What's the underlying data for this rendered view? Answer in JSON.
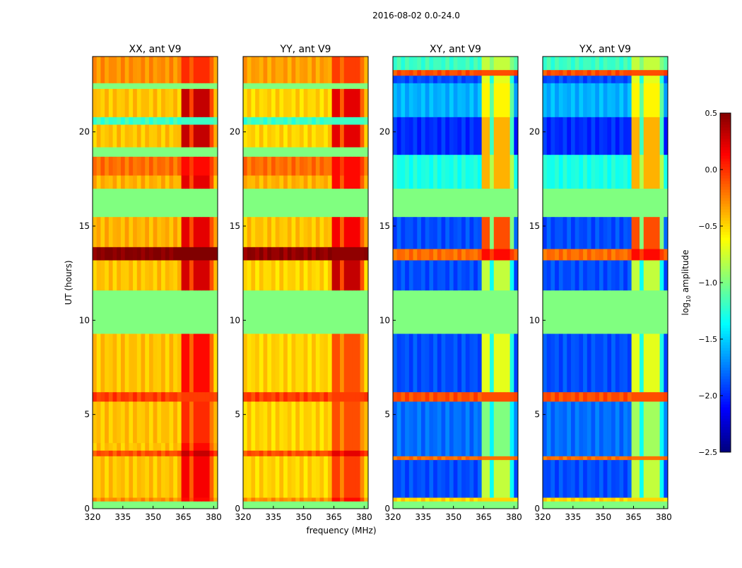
{
  "chart_data": {
    "type": "heatmap",
    "suptitle": "2016-08-02 0.0-24.0",
    "xlabel": "frequency (MHz)",
    "ylabel": "UT (hours)",
    "xlim": [
      320,
      382
    ],
    "ylim": [
      0,
      24
    ],
    "xticks": [
      "320",
      "335",
      "350",
      "365",
      "380"
    ],
    "yticks": [
      "0",
      "5",
      "10",
      "15",
      "20"
    ],
    "rfi_region_mhz": [
      363,
      380
    ],
    "colorbar": {
      "label_main": "log",
      "label_sub": "10",
      "label_rest": " amplitude",
      "range": [
        -2.5,
        0.5
      ],
      "colormap": "jet",
      "ticks": [
        "0.5",
        "0.0",
        "−0.5",
        "−1.0",
        "−1.5",
        "−2.0",
        "−2.5"
      ]
    },
    "panels": [
      {
        "title": "XX, ant V9",
        "bands": [
          [
            0,
            0.4,
            -1.0,
            -1.0
          ],
          [
            0.4,
            0.6,
            -0.3,
            0.1
          ],
          [
            0.6,
            2.8,
            -0.45,
            0.15
          ],
          [
            2.8,
            3.1,
            -0.1,
            0.3
          ],
          [
            3.1,
            3.5,
            -0.45,
            0.1
          ],
          [
            3.5,
            5.7,
            -0.45,
            0.0
          ],
          [
            5.7,
            6.2,
            -0.05,
            -0.05
          ],
          [
            6.2,
            9.3,
            -0.45,
            0.1
          ],
          [
            9.3,
            11.6,
            -1.0,
            -1.0
          ],
          [
            11.6,
            13.2,
            -0.45,
            0.25
          ],
          [
            13.2,
            13.9,
            0.5,
            0.5
          ],
          [
            13.9,
            15.5,
            -0.4,
            0.2
          ],
          [
            15.5,
            17.0,
            -1.0,
            -1.0
          ],
          [
            17.0,
            17.7,
            -0.4,
            0.2
          ],
          [
            17.7,
            18.7,
            -0.2,
            0.1
          ],
          [
            18.7,
            19.2,
            -1.0,
            -1.0
          ],
          [
            19.2,
            20.4,
            -0.45,
            0.3
          ],
          [
            20.4,
            20.8,
            -1.2,
            -1.2
          ],
          [
            20.8,
            22.3,
            -0.45,
            0.3
          ],
          [
            22.3,
            22.6,
            -1.0,
            -1.0
          ],
          [
            22.6,
            24,
            -0.3,
            0.0
          ]
        ]
      },
      {
        "title": "YY, ant V9",
        "bands": [
          [
            0,
            0.4,
            -1.0,
            -1.0
          ],
          [
            0.4,
            0.6,
            -0.3,
            0.1
          ],
          [
            0.6,
            2.8,
            -0.5,
            -0.05
          ],
          [
            2.8,
            3.1,
            -0.1,
            0.2
          ],
          [
            3.1,
            5.7,
            -0.5,
            -0.1
          ],
          [
            5.7,
            6.2,
            -0.05,
            -0.05
          ],
          [
            6.2,
            9.3,
            -0.5,
            -0.1
          ],
          [
            9.3,
            11.6,
            -1.0,
            -1.0
          ],
          [
            11.6,
            13.2,
            -0.5,
            0.3
          ],
          [
            13.2,
            13.9,
            0.45,
            0.45
          ],
          [
            13.9,
            15.5,
            -0.45,
            0.15
          ],
          [
            15.5,
            17.0,
            -1.0,
            -1.0
          ],
          [
            17.0,
            17.7,
            -0.4,
            0.1
          ],
          [
            17.7,
            18.7,
            -0.2,
            0.1
          ],
          [
            18.7,
            19.2,
            -1.0,
            -1.0
          ],
          [
            19.2,
            20.4,
            -0.5,
            0.2
          ],
          [
            20.4,
            20.8,
            -1.2,
            -1.2
          ],
          [
            20.8,
            22.3,
            -0.5,
            0.2
          ],
          [
            22.3,
            22.6,
            -1.0,
            -1.0
          ],
          [
            22.6,
            24,
            -0.35,
            -0.05
          ]
        ]
      },
      {
        "title": "XY, ant V9",
        "bands": [
          [
            0,
            0.4,
            -1.0,
            -1.0
          ],
          [
            0.4,
            0.6,
            -0.5,
            -0.5
          ],
          [
            0.6,
            2.6,
            -1.9,
            -0.8
          ],
          [
            2.6,
            2.8,
            -0.2,
            -0.2
          ],
          [
            2.8,
            5.7,
            -1.8,
            -1.0
          ],
          [
            5.7,
            6.2,
            -0.1,
            -0.1
          ],
          [
            6.2,
            9.3,
            -1.9,
            -0.7
          ],
          [
            9.3,
            11.6,
            -1.0,
            -1.0
          ],
          [
            11.6,
            13.2,
            -1.9,
            -0.8
          ],
          [
            13.2,
            13.8,
            -0.2,
            0.1
          ],
          [
            13.8,
            15.5,
            -1.9,
            -0.1
          ],
          [
            15.5,
            17.0,
            -1.0,
            -1.0
          ],
          [
            17.0,
            18.8,
            -1.3,
            -0.4
          ],
          [
            18.8,
            20.8,
            -2.0,
            -0.4
          ],
          [
            20.8,
            22.6,
            -1.6,
            -0.6
          ],
          [
            22.6,
            23.0,
            -1.9,
            -0.7
          ],
          [
            23.0,
            23.3,
            -0.1,
            -0.1
          ],
          [
            23.3,
            24,
            -1.2,
            -0.8
          ]
        ]
      },
      {
        "title": "YX, ant V9",
        "bands": [
          [
            0,
            0.4,
            -1.0,
            -1.0
          ],
          [
            0.4,
            0.6,
            -0.5,
            -0.5
          ],
          [
            0.6,
            2.6,
            -1.9,
            -0.8
          ],
          [
            2.6,
            2.8,
            -0.2,
            -0.2
          ],
          [
            2.8,
            5.7,
            -1.8,
            -0.9
          ],
          [
            5.7,
            6.2,
            -0.1,
            -0.1
          ],
          [
            6.2,
            9.3,
            -1.9,
            -0.7
          ],
          [
            9.3,
            11.6,
            -1.0,
            -1.0
          ],
          [
            11.6,
            13.2,
            -1.9,
            -0.8
          ],
          [
            13.2,
            13.8,
            -0.2,
            0.1
          ],
          [
            13.8,
            15.5,
            -1.9,
            -0.1
          ],
          [
            15.5,
            17.0,
            -1.0,
            -1.0
          ],
          [
            17.0,
            18.8,
            -1.3,
            -0.4
          ],
          [
            18.8,
            20.8,
            -2.0,
            -0.4
          ],
          [
            20.8,
            22.6,
            -1.6,
            -0.6
          ],
          [
            22.6,
            23.0,
            -1.9,
            -0.7
          ],
          [
            23.0,
            23.3,
            -0.1,
            -0.1
          ],
          [
            23.3,
            24,
            -1.2,
            -0.8
          ]
        ]
      }
    ]
  }
}
